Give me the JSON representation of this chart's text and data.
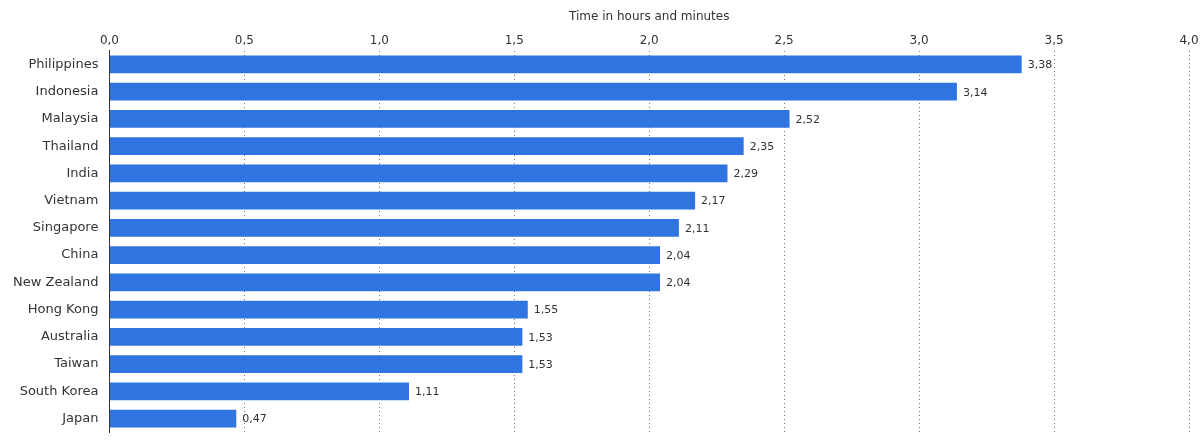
{
  "chart_data": {
    "type": "bar",
    "orientation": "horizontal",
    "xlabel": "Time in hours and minutes",
    "categories": [
      "Philippines",
      "Indonesia",
      "Malaysia",
      "Thailand",
      "India",
      "Vietnam",
      "Singapore",
      "China",
      "New Zealand",
      "Hong Kong",
      "Australia",
      "Taiwan",
      "South Korea",
      "Japan"
    ],
    "values": [
      3.38,
      3.14,
      2.52,
      2.35,
      2.29,
      2.17,
      2.11,
      2.04,
      2.04,
      1.55,
      1.53,
      1.53,
      1.11,
      0.47
    ],
    "value_labels": [
      "3,38",
      "3,14",
      "2,52",
      "2,35",
      "2,29",
      "2,17",
      "2,11",
      "2,04",
      "2,04",
      "1,55",
      "1,53",
      "1,53",
      "1,11",
      "0,47"
    ],
    "color": "#2f74e0",
    "xlim": [
      0,
      4
    ],
    "xticks": [
      {
        "value": 0,
        "label": "0,0"
      },
      {
        "value": 0.5,
        "label": "0,5"
      },
      {
        "value": 1,
        "label": "1,0"
      },
      {
        "value": 1.5,
        "label": "1,5"
      },
      {
        "value": 2,
        "label": "2,0"
      },
      {
        "value": 2.5,
        "label": "2,5"
      },
      {
        "value": 3,
        "label": "3,0"
      },
      {
        "value": 3.5,
        "label": "3,5"
      },
      {
        "value": 4,
        "label": "4,0"
      }
    ],
    "grid": "x",
    "legend": false
  }
}
